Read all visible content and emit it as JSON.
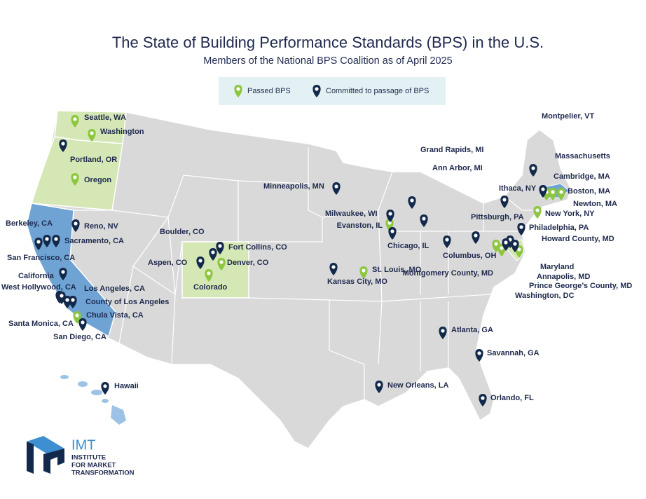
{
  "header": {
    "title": "The State of Building Performance Standards (BPS) in the U.S.",
    "subtitle": "Members of the National BPS Coalition as of April 2025"
  },
  "legend": [
    {
      "label": "Passed BPS",
      "color": "#8dc63f",
      "places": [
        "Seattle, WA",
        "Washington",
        "Oregon",
        "Colorado",
        "Denver, CO",
        "Evanston, IL",
        "St. Louis, MO",
        "Chula Vista, CA",
        "New York, NY",
        "Boston, MA",
        "Cambridge, MA",
        "Newton, MA",
        "Maryland",
        "Montgomery County, MD",
        "Washington, DC"
      ]
    },
    {
      "label": "Committed to passage of BPS",
      "color": "#13294b",
      "places": [
        "Portland, OR",
        "Reno, NV",
        "Berkeley, CA",
        "Sacramento, CA",
        "San Francisco, CA",
        "California",
        "West Hollywood, CA",
        "Los Angeles, CA",
        "County of Los Angeles",
        "Santa Monica, CA",
        "San Diego, CA",
        "Hawaii",
        "Boulder, CO",
        "Fort Collins, CO",
        "Aspen, CO",
        "Minneapolis, MN",
        "Milwaukee, WI",
        "Chicago, IL",
        "Kansas City, MO",
        "Grand Rapids, MI",
        "Ann Arbor, MI",
        "Columbus, OH",
        "Pittsburgh, PA",
        "Philadelphia, PA",
        "Howard County, MD",
        "Annapolis, MD",
        "Prince George’s County, MD",
        "Ithaca, NY",
        "Montpelier, VT",
        "Massachusetts",
        "Atlanta, GA",
        "Savannah, GA",
        "New Orleans, LA",
        "Orlando, FL"
      ]
    }
  ],
  "logo": {
    "name": "IMT",
    "lines": [
      "INSTITUTE",
      "FOR MARKET",
      "TRANSFORMATION"
    ]
  }
}
